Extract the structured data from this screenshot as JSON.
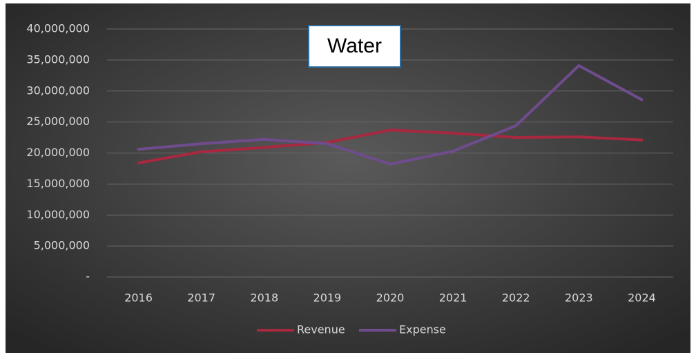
{
  "chart_data": {
    "type": "line",
    "title": "Water",
    "categories": [
      "2016",
      "2017",
      "2018",
      "2019",
      "2020",
      "2021",
      "2022",
      "2023",
      "2024"
    ],
    "series": [
      {
        "name": "Revenue",
        "color": "#a8283f",
        "values": [
          18400000,
          20200000,
          20900000,
          21700000,
          23700000,
          23200000,
          22500000,
          22600000,
          22100000
        ]
      },
      {
        "name": "Expense",
        "color": "#6f4c8e",
        "values": [
          20600000,
          21500000,
          22200000,
          21500000,
          18200000,
          20300000,
          24400000,
          34100000,
          28600000
        ]
      }
    ],
    "ylim": [
      0,
      40000000
    ],
    "yticks": [
      {
        "value": 0,
        "label": "-"
      },
      {
        "value": 5000000,
        "label": "5,000,000"
      },
      {
        "value": 10000000,
        "label": "10,000,000"
      },
      {
        "value": 15000000,
        "label": "15,000,000"
      },
      {
        "value": 20000000,
        "label": "20,000,000"
      },
      {
        "value": 25000000,
        "label": "25,000,000"
      },
      {
        "value": 30000000,
        "label": "30,000,000"
      },
      {
        "value": 35000000,
        "label": "35,000,000"
      },
      {
        "value": 40000000,
        "label": "40,000,000"
      }
    ],
    "grid": true,
    "legend": "bottom"
  }
}
